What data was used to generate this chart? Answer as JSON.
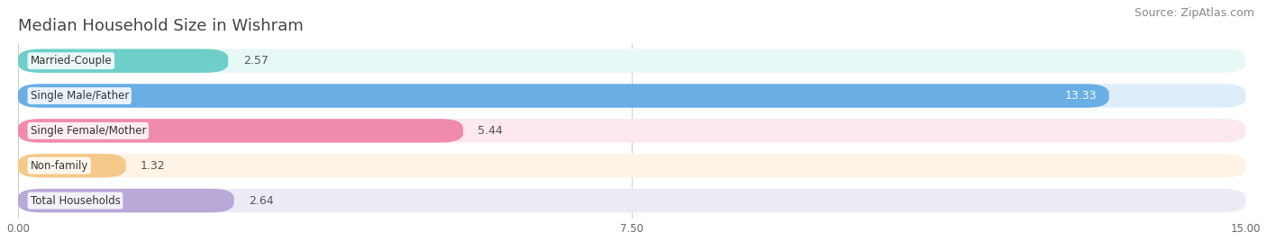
{
  "title": "Median Household Size in Wishram",
  "source": "Source: ZipAtlas.com",
  "categories": [
    "Married-Couple",
    "Single Male/Father",
    "Single Female/Mother",
    "Non-family",
    "Total Households"
  ],
  "values": [
    2.57,
    13.33,
    5.44,
    1.32,
    2.64
  ],
  "bar_colors": [
    "#6ecfca",
    "#6aaee6",
    "#f08bab",
    "#f5c98a",
    "#b8a9d9"
  ],
  "bar_bg_colors": [
    "#e8f8f7",
    "#ddeefa",
    "#fce8ef",
    "#fdf3e7",
    "#eeebf7"
  ],
  "value_label_colors": [
    "#555555",
    "#ffffff",
    "#555555",
    "#555555",
    "#555555"
  ],
  "xlim": [
    0,
    15.0
  ],
  "xticks": [
    0.0,
    7.5,
    15.0
  ],
  "background_color": "#ffffff",
  "title_fontsize": 13,
  "source_fontsize": 9,
  "bar_label_fontsize": 9,
  "category_label_fontsize": 8.5
}
